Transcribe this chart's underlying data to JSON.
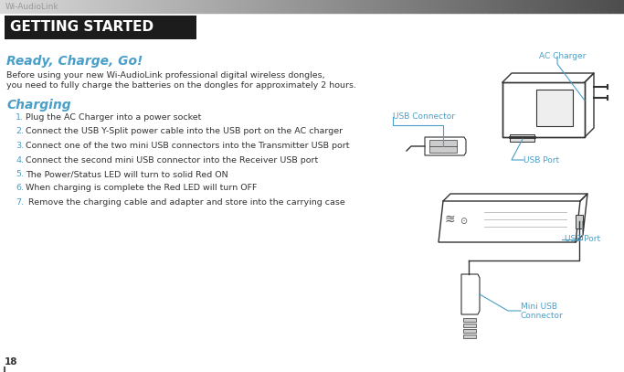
{
  "bg_color": "#ffffff",
  "header_bar_color": "#1c1c1c",
  "header_text": "GETTING STARTED",
  "header_text_color": "#ffffff",
  "top_label": "Wi-AudioLink",
  "top_label_color": "#999999",
  "title": "Ready, Charge, Go!",
  "title_color": "#4a9fc8",
  "intro_line1": "Before using your new Wi-AudioLink professional digital wireless dongles,",
  "intro_line2": "you need to fully charge the batteries on the dongles for approximately 2 hours.",
  "section_title": "Charging",
  "section_title_color": "#4a9fc8",
  "steps": [
    "Plug the AC Charger into a power socket",
    "Connect the USB Y-Split power cable into the USB port on the AC charger",
    "Connect one of the two mini USB connectors into the Transmitter USB port",
    "Connect the second mini USB connector into the Receiver USB port",
    "The Power/Status LED will turn to solid Red ON",
    "When charging is complete the Red LED will turn OFF",
    " Remove the charging cable and adapter and store into the carrying case"
  ],
  "step_numbers_color": "#4a9fc8",
  "step_text_color": "#333333",
  "label_color": "#4a9fc8",
  "page_number": "18",
  "page_number_color": "#333333",
  "intro_text_color": "#333333",
  "line_color": "#333333"
}
